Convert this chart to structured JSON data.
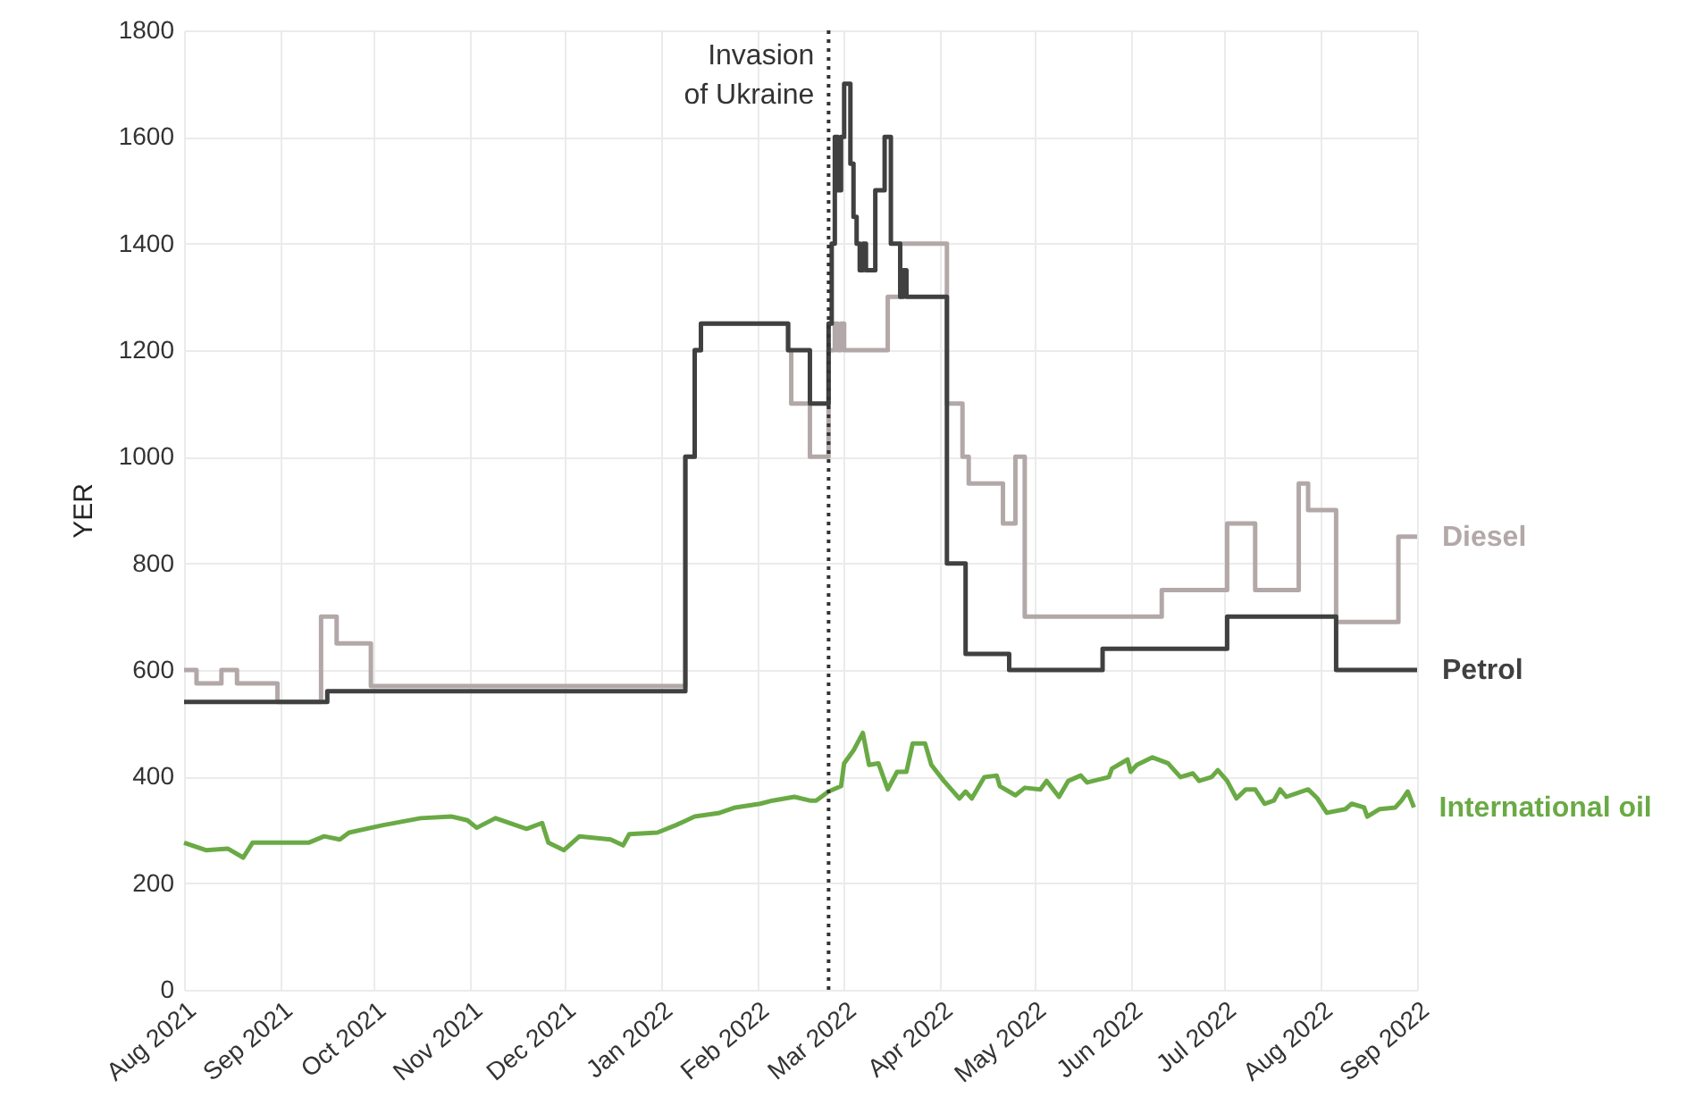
{
  "chart_data": {
    "type": "line",
    "ylabel": "YER",
    "xlim": [
      "2021-08-01",
      "2022-09-01"
    ],
    "ylim": [
      0,
      1800
    ],
    "xticks": [
      {
        "value": "2021-08-01",
        "label": "Aug 2021"
      },
      {
        "value": "2021-09-01",
        "label": "Sep 2021"
      },
      {
        "value": "2021-10-01",
        "label": "Oct 2021"
      },
      {
        "value": "2021-11-01",
        "label": "Nov 2021"
      },
      {
        "value": "2021-12-01",
        "label": "Dec 2021"
      },
      {
        "value": "2022-01-01",
        "label": "Jan 2022"
      },
      {
        "value": "2022-02-01",
        "label": "Feb 2022"
      },
      {
        "value": "2022-03-01",
        "label": "Mar 2022"
      },
      {
        "value": "2022-04-01",
        "label": "Apr 2022"
      },
      {
        "value": "2022-05-01",
        "label": "May 2022"
      },
      {
        "value": "2022-06-01",
        "label": "Jun 2022"
      },
      {
        "value": "2022-07-01",
        "label": "Jul 2022"
      },
      {
        "value": "2022-08-01",
        "label": "Aug 2022"
      },
      {
        "value": "2022-09-01",
        "label": "Sep 2022"
      }
    ],
    "yticks": [
      0,
      200,
      400,
      600,
      800,
      1000,
      1200,
      1400,
      1600,
      1800
    ],
    "grid": true,
    "line_style": "solid",
    "ref_lines": [
      {
        "axis": "x",
        "value": "2022-02-24",
        "label": "Invasion\nof Ukraine",
        "color": "#333333",
        "line_style": "dotted"
      }
    ],
    "series": [
      {
        "name": "Diesel",
        "type": "step",
        "color": "#b3a8a8",
        "x": [
          "2021-08-01",
          "2021-08-05",
          "2021-08-13",
          "2021-08-18",
          "2021-08-31",
          "2021-09-14",
          "2021-09-19",
          "2021-09-30",
          "2022-01-09",
          "2022-01-12",
          "2022-01-14",
          "2022-02-11",
          "2022-02-12",
          "2022-02-18",
          "2022-02-24",
          "2022-02-26",
          "2022-02-27",
          "2022-02-28",
          "2022-03-01",
          "2022-03-03",
          "2022-03-15",
          "2022-03-16",
          "2022-03-19",
          "2022-04-03",
          "2022-04-08",
          "2022-04-10",
          "2022-04-21",
          "2022-04-25",
          "2022-04-28",
          "2022-06-11",
          "2022-07-02",
          "2022-07-11",
          "2022-07-25",
          "2022-07-28",
          "2022-08-06",
          "2022-08-26",
          "2022-09-01"
        ],
        "values": [
          600,
          575,
          600,
          575,
          540,
          700,
          650,
          570,
          1000,
          1200,
          1250,
          1200,
          1100,
          1000,
          1200,
          1250,
          1200,
          1250,
          1200,
          1200,
          1300,
          1300,
          1400,
          1100,
          1000,
          950,
          875,
          1000,
          700,
          750,
          875,
          750,
          950,
          900,
          690,
          850,
          850
        ]
      },
      {
        "name": "Petrol",
        "type": "step",
        "color": "#404040",
        "x": [
          "2021-08-01",
          "2021-09-16",
          "2022-01-09",
          "2022-01-12",
          "2022-01-14",
          "2022-02-11",
          "2022-02-18",
          "2022-02-24",
          "2022-02-25",
          "2022-02-26",
          "2022-02-27",
          "2022-02-28",
          "2022-03-01",
          "2022-03-03",
          "2022-03-04",
          "2022-03-05",
          "2022-03-06",
          "2022-03-07",
          "2022-03-08",
          "2022-03-11",
          "2022-03-13",
          "2022-03-14",
          "2022-03-16",
          "2022-03-19",
          "2022-03-20",
          "2022-03-21",
          "2022-04-03",
          "2022-04-09",
          "2022-04-23",
          "2022-05-23",
          "2022-07-02",
          "2022-08-06",
          "2022-09-01"
        ],
        "values": [
          540,
          560,
          1000,
          1200,
          1250,
          1200,
          1100,
          1250,
          1400,
          1600,
          1500,
          1600,
          1700,
          1550,
          1450,
          1400,
          1350,
          1400,
          1350,
          1500,
          1500,
          1600,
          1400,
          1300,
          1350,
          1300,
          800,
          630,
          600,
          640,
          700,
          600,
          600
        ]
      },
      {
        "name": "International oil",
        "type": "line",
        "color": "#6aaa45",
        "x": [
          "2021-08-01",
          "2021-08-08",
          "2021-08-15",
          "2021-08-20",
          "2021-08-23",
          "2021-09-04",
          "2021-09-10",
          "2021-09-15",
          "2021-09-20",
          "2021-09-23",
          "2021-10-04",
          "2021-10-16",
          "2021-10-26",
          "2021-10-31",
          "2021-11-03",
          "2021-11-09",
          "2021-11-19",
          "2021-11-24",
          "2021-11-26",
          "2021-12-01",
          "2021-12-06",
          "2021-12-16",
          "2021-12-20",
          "2021-12-22",
          "2021-12-31",
          "2022-01-06",
          "2022-01-12",
          "2022-01-20",
          "2022-01-25",
          "2022-02-02",
          "2022-02-06",
          "2022-02-13",
          "2022-02-18",
          "2022-02-20",
          "2022-02-24",
          "2022-02-28",
          "2022-03-01",
          "2022-03-04",
          "2022-03-07",
          "2022-03-09",
          "2022-03-12",
          "2022-03-15",
          "2022-03-18",
          "2022-03-21",
          "2022-03-23",
          "2022-03-27",
          "2022-03-29",
          "2022-04-02",
          "2022-04-07",
          "2022-04-09",
          "2022-04-11",
          "2022-04-15",
          "2022-04-19",
          "2022-04-20",
          "2022-04-25",
          "2022-04-28",
          "2022-05-03",
          "2022-05-05",
          "2022-05-09",
          "2022-05-12",
          "2022-05-16",
          "2022-05-18",
          "2022-05-25",
          "2022-05-26",
          "2022-05-31",
          "2022-06-01",
          "2022-06-03",
          "2022-06-08",
          "2022-06-13",
          "2022-06-17",
          "2022-06-21",
          "2022-06-23",
          "2022-06-27",
          "2022-06-29",
          "2022-07-02",
          "2022-07-05",
          "2022-07-08",
          "2022-07-11",
          "2022-07-14",
          "2022-07-17",
          "2022-07-19",
          "2022-07-21",
          "2022-07-28",
          "2022-07-31",
          "2022-08-03",
          "2022-08-09",
          "2022-08-11",
          "2022-08-15",
          "2022-08-16",
          "2022-08-20",
          "2022-08-25",
          "2022-08-27",
          "2022-08-29",
          "2022-08-31"
        ],
        "values": [
          276,
          262,
          265,
          248,
          276,
          276,
          276,
          288,
          282,
          295,
          309,
          322,
          325,
          318,
          304,
          322,
          302,
          313,
          276,
          262,
          288,
          282,
          271,
          292,
          295,
          309,
          325,
          332,
          342,
          349,
          355,
          362,
          355,
          355,
          372,
          382,
          425,
          449,
          482,
          422,
          425,
          376,
          409,
          409,
          462,
          462,
          422,
          392,
          359,
          372,
          359,
          399,
          402,
          382,
          365,
          379,
          376,
          392,
          362,
          392,
          402,
          389,
          399,
          415,
          432,
          409,
          422,
          436,
          425,
          399,
          406,
          392,
          399,
          412,
          392,
          359,
          376,
          376,
          349,
          355,
          376,
          362,
          376,
          359,
          332,
          339,
          349,
          342,
          325,
          339,
          342,
          355,
          372,
          342
        ]
      }
    ]
  }
}
